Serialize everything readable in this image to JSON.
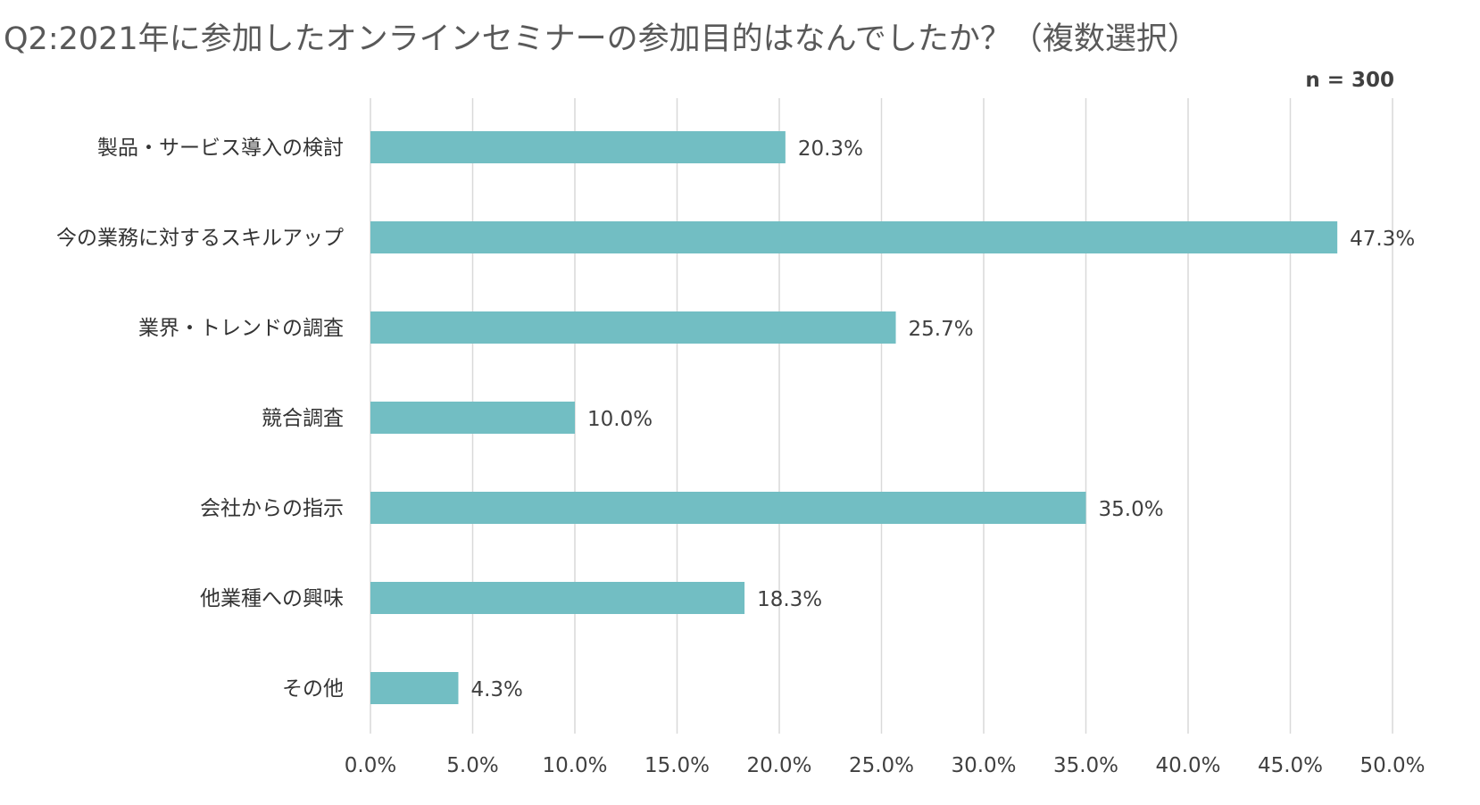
{
  "chart_data": {
    "type": "bar",
    "orientation": "horizontal",
    "title": "Q2:2021年に参加したオンラインセミナーの参加目的はなんでしたか？（複数選択）",
    "sample_size": "n = 300",
    "categories": [
      "製品・サービス導入の検討",
      "今の業務に対するスキルアップ",
      "業界・トレンドの調査",
      "競合調査",
      "会社からの指示",
      "他業種への興味",
      "その他"
    ],
    "values": [
      20.3,
      47.3,
      25.7,
      10.0,
      35.0,
      18.3,
      4.3
    ],
    "value_labels": [
      "20.3%",
      "47.3%",
      "25.7%",
      "10.0%",
      "35.0%",
      "18.3%",
      "4.3%"
    ],
    "xlim": [
      0,
      50
    ],
    "x_ticks": [
      0,
      5,
      10,
      15,
      20,
      25,
      30,
      35,
      40,
      45,
      50
    ],
    "x_tick_labels": [
      "0.0%",
      "5.0%",
      "10.0%",
      "15.0%",
      "20.0%",
      "25.0%",
      "30.0%",
      "35.0%",
      "40.0%",
      "45.0%",
      "50.0%"
    ],
    "grid": true,
    "bar_color": "#72bec3",
    "xlabel": "",
    "ylabel": ""
  }
}
